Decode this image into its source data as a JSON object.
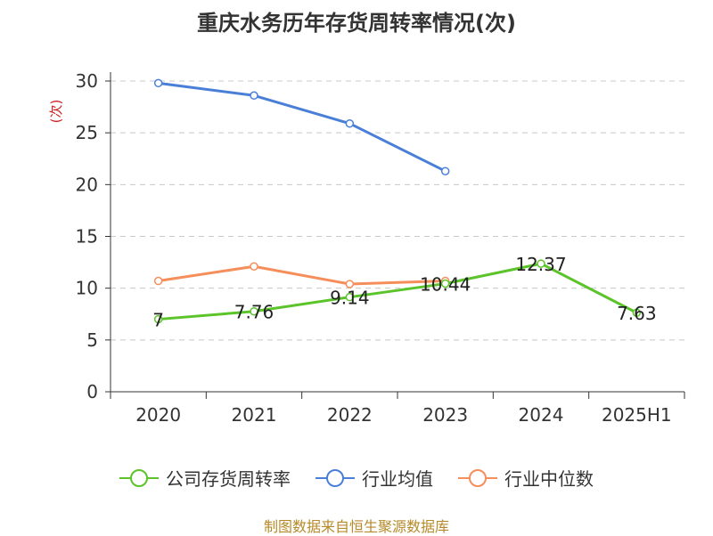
{
  "chart_data": {
    "type": "line",
    "title": "重庆水务历年存货周转率情况(次)",
    "ylabel": "(次)",
    "ylim": [
      0,
      30
    ],
    "yticks": [
      0,
      5,
      10,
      15,
      20,
      25,
      30
    ],
    "categories": [
      "2020",
      "2021",
      "2022",
      "2023",
      "2024",
      "2025H1"
    ],
    "grid": "horizontal dashed",
    "legend_position": "bottom",
    "series": [
      {
        "name": "公司存货周转率",
        "color": "#5bc42a",
        "values": [
          7,
          7.76,
          9.14,
          10.44,
          12.37,
          7.63
        ],
        "labels": [
          "7",
          "7.76",
          "9.14",
          "10.44",
          "12.37",
          "7.63"
        ]
      },
      {
        "name": "行业均值",
        "color": "#4a7fd8",
        "values": [
          29.8,
          28.6,
          25.9,
          21.3,
          null,
          null
        ]
      },
      {
        "name": "行业中位数",
        "color": "#f58e5a",
        "values": [
          10.7,
          12.1,
          10.4,
          10.7,
          null,
          null
        ]
      }
    ]
  },
  "footer": "制图数据来自恒生聚源数据库"
}
